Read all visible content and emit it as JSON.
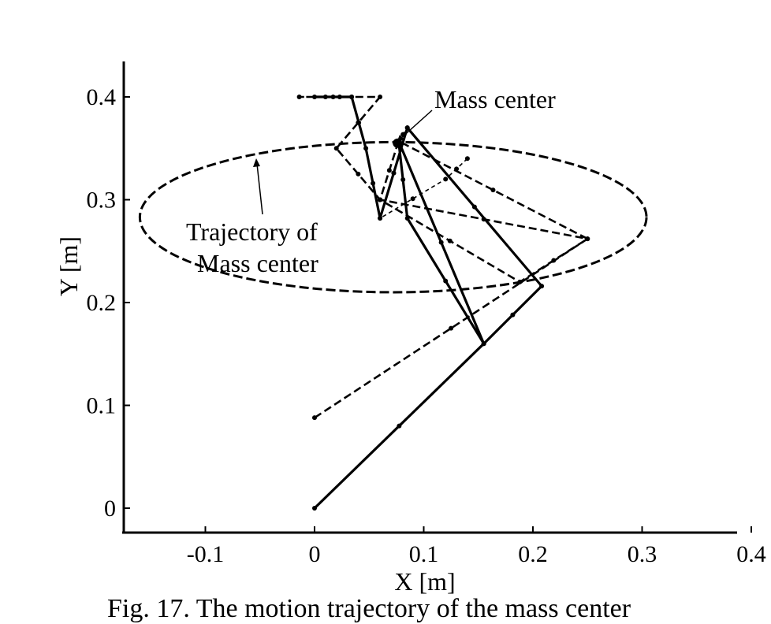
{
  "chart_data": {
    "type": "line",
    "xlabel": "X [m]",
    "ylabel": "Y [m]",
    "xlim": [
      -0.17,
      0.385
    ],
    "ylim": [
      -0.02,
      0.435
    ],
    "xticks": [
      -0.1,
      0,
      0.1,
      0.2,
      0.3,
      0.4
    ],
    "xtick_labels": [
      "-0.1",
      "0",
      "0.1",
      "0.2",
      "0.3",
      "0.4"
    ],
    "yticks": [
      0,
      0.1,
      0.2,
      0.3,
      0.4
    ],
    "ytick_labels": [
      "0",
      "0.1",
      "0.2",
      "0.3",
      "0.4"
    ],
    "grid": false,
    "legend": "none",
    "series": [
      {
        "style": "solid",
        "x": [
          0,
          0.155,
          0.085,
          0.077,
          0.155,
          0.208,
          0.085,
          0.06,
          0.047,
          0.034,
          0
        ],
        "y": [
          0,
          0.16,
          0.282,
          0.357,
          0.16,
          0.216,
          0.37,
          0.282,
          0.35,
          0.4,
          0.4
        ]
      },
      {
        "style": "dashed",
        "x": [
          0,
          0.25,
          0.06,
          0.06,
          0.188,
          0.25,
          0.077,
          0.06,
          0.02,
          0.06,
          -0.014,
          0.034
        ],
        "y": [
          0.088,
          0.262,
          0.3,
          0.3,
          0.22,
          0.262,
          0.357,
          0.3,
          0.35,
          0.4,
          0.4,
          0.4
        ]
      },
      {
        "style": "dashed-thin",
        "x": [
          0.077,
          0.085,
          0.06,
          0.12,
          0.14
        ],
        "y": [
          0.357,
          0.37,
          0.282,
          0.32,
          0.34
        ]
      }
    ],
    "trajectory": {
      "style": "dashed",
      "center_x": 0.072,
      "center_y": 0.283,
      "radius_x": 0.232,
      "radius_y": 0.073
    },
    "mass_center_point": {
      "x": 0.076,
      "y": 0.355
    },
    "annotations": [
      {
        "text": "Mass center"
      },
      {
        "text": "Trajectory of"
      },
      {
        "text": "Mass center"
      }
    ]
  },
  "caption": "Fig. 17. The motion trajectory of the mass center"
}
